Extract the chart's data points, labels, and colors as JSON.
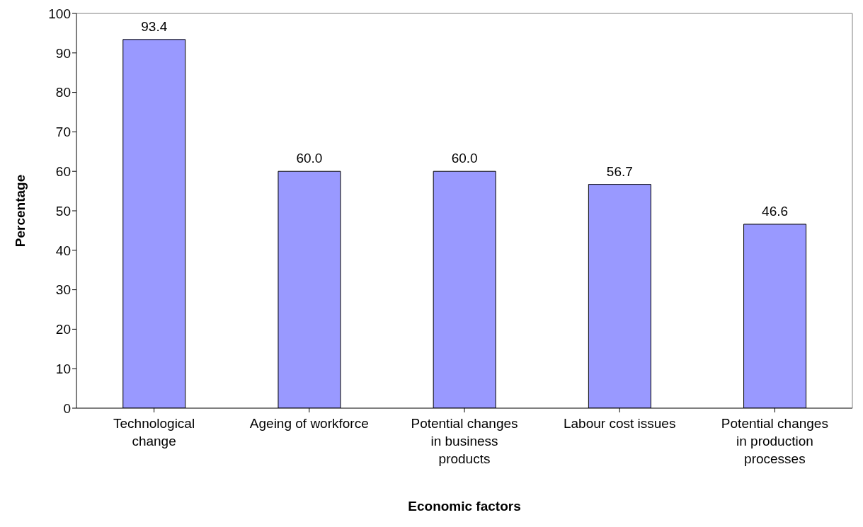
{
  "chart_data": {
    "type": "bar",
    "xlabel": "Economic factors",
    "ylabel": "Percentage",
    "categories": [
      "Technological change",
      "Ageing of workforce",
      "Potential changes in business products",
      "Labour cost issues",
      "Potential changes in production processes"
    ],
    "values": [
      93.4,
      60.0,
      60.0,
      56.7,
      46.6
    ],
    "value_labels": [
      "93.4",
      "60.0",
      "60.0",
      "56.7",
      "46.6"
    ],
    "color": "#9999ff",
    "ylim": [
      0,
      100
    ],
    "yticks": [
      0,
      10,
      20,
      30,
      40,
      50,
      60,
      70,
      80,
      90,
      100
    ],
    "grid": false,
    "legend": false
  }
}
